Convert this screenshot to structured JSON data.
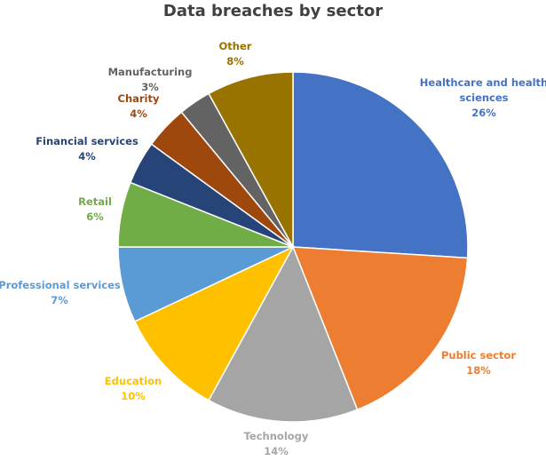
{
  "chart_data": {
    "type": "pie",
    "title": "Data breaches by sector",
    "slices": [
      {
        "label": "Healthcare and health sciences",
        "label_lines": [
          "Healthcare and health",
          "sciences"
        ],
        "value": 26,
        "value_label": "26%",
        "color": "#4472C4"
      },
      {
        "label": "Public sector",
        "label_lines": [
          "Public sector"
        ],
        "value": 18,
        "value_label": "18%",
        "color": "#ED7D31"
      },
      {
        "label": "Technology",
        "label_lines": [
          "Technology"
        ],
        "value": 14,
        "value_label": "14%",
        "color": "#A5A5A5"
      },
      {
        "label": "Education",
        "label_lines": [
          "Education"
        ],
        "value": 10,
        "value_label": "10%",
        "color": "#FFC000"
      },
      {
        "label": "Professional services",
        "label_lines": [
          "Professional services"
        ],
        "value": 7,
        "value_label": "7%",
        "color": "#5B9BD5"
      },
      {
        "label": "Retail",
        "label_lines": [
          "Retail"
        ],
        "value": 6,
        "value_label": "6%",
        "color": "#70AD47"
      },
      {
        "label": "Financial services",
        "label_lines": [
          "Financial services"
        ],
        "value": 4,
        "value_label": "4%",
        "color": "#264478"
      },
      {
        "label": "Charity",
        "label_lines": [
          "Charity"
        ],
        "value": 4,
        "value_label": "4%",
        "color": "#9E480E"
      },
      {
        "label": "Manufacturing",
        "label_lines": [
          "Manufacturing"
        ],
        "value": 3,
        "value_label": "3%",
        "color": "#636363"
      },
      {
        "label": "Other",
        "label_lines": [
          "Other"
        ],
        "value": 8,
        "value_label": "8%",
        "color": "#997300"
      }
    ],
    "legend": "none (data labels outside slices)"
  }
}
